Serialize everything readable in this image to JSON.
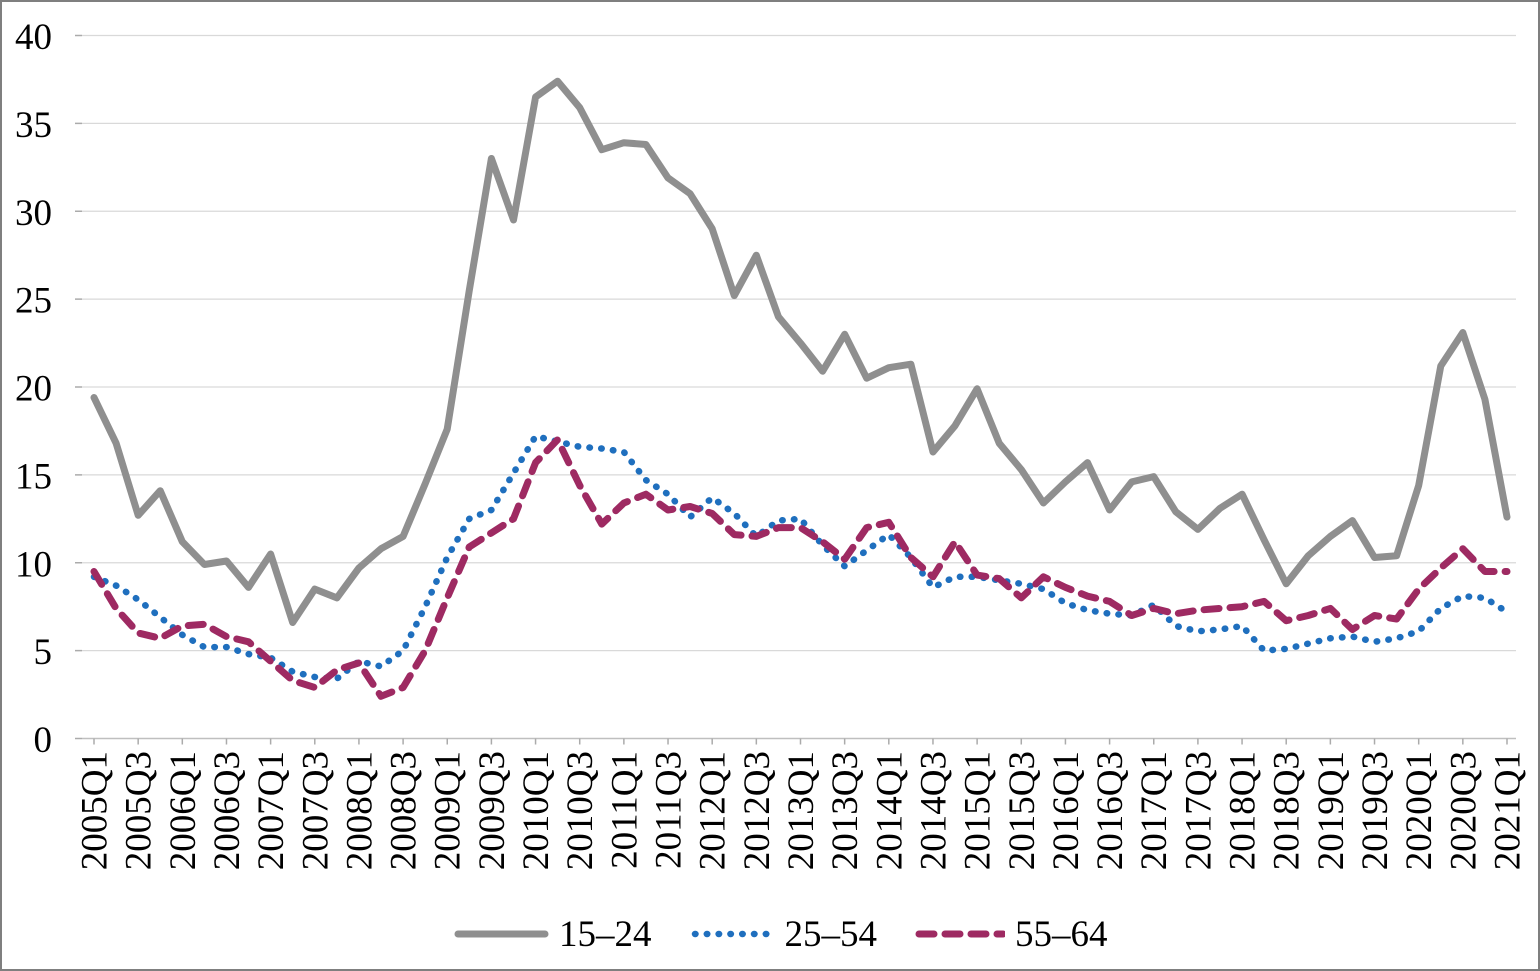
{
  "chart_data": {
    "type": "line",
    "title": "",
    "xlabel": "",
    "ylabel": "",
    "ylim": [
      0,
      40
    ],
    "y_ticks": [
      0,
      5,
      10,
      15,
      20,
      25,
      30,
      35,
      40
    ],
    "grid": "horizontal",
    "legend_position": "bottom-center",
    "x_categories": [
      "2005Q1",
      "2005Q2",
      "2005Q3",
      "2005Q4",
      "2006Q1",
      "2006Q2",
      "2006Q3",
      "2006Q4",
      "2007Q1",
      "2007Q2",
      "2007Q3",
      "2007Q4",
      "2008Q1",
      "2008Q2",
      "2008Q3",
      "2008Q4",
      "2009Q1",
      "2009Q2",
      "2009Q3",
      "2009Q4",
      "2010Q1",
      "2010Q2",
      "2010Q3",
      "2010Q4",
      "2011Q1",
      "2011Q2",
      "2011Q3",
      "2011Q4",
      "2012Q1",
      "2012Q2",
      "2012Q3",
      "2012Q4",
      "2013Q1",
      "2013Q2",
      "2013Q3",
      "2013Q4",
      "2014Q1",
      "2014Q2",
      "2014Q3",
      "2014Q4",
      "2015Q1",
      "2015Q2",
      "2015Q3",
      "2015Q4",
      "2016Q1",
      "2016Q2",
      "2016Q3",
      "2016Q4",
      "2017Q1",
      "2017Q2",
      "2017Q3",
      "2017Q4",
      "2018Q1",
      "2018Q2",
      "2018Q3",
      "2018Q4",
      "2019Q1",
      "2019Q2",
      "2019Q3",
      "2019Q4",
      "2020Q1",
      "2020Q2",
      "2020Q3",
      "2020Q4",
      "2021Q1"
    ],
    "x_tick_labels": [
      "2005Q1",
      "2005Q3",
      "2006Q1",
      "2006Q3",
      "2007Q1",
      "2007Q3",
      "2008Q1",
      "2008Q3",
      "2009Q1",
      "2009Q3",
      "2010Q1",
      "2010Q3",
      "2011Q1",
      "2011Q3",
      "2012Q1",
      "2012Q3",
      "2013Q1",
      "2013Q3",
      "2014Q1",
      "2014Q3",
      "2015Q1",
      "2015Q3",
      "2016Q1",
      "2016Q3",
      "2017Q1",
      "2017Q3",
      "2018Q1",
      "2018Q3",
      "2019Q1",
      "2019Q3",
      "2020Q1",
      "2020Q3",
      "2021Q1"
    ],
    "series": [
      {
        "name": "15–24",
        "style": "solid",
        "color": "#8f8f8f",
        "stroke_width": 7,
        "values": [
          19.4,
          16.8,
          12.7,
          14.1,
          11.2,
          9.9,
          10.1,
          8.6,
          10.5,
          6.6,
          8.5,
          8.0,
          9.7,
          10.8,
          11.5,
          14.5,
          17.6,
          25.5,
          33.0,
          29.5,
          36.5,
          37.4,
          35.9,
          33.5,
          33.9,
          33.8,
          31.9,
          31.0,
          29.0,
          25.2,
          27.5,
          24.0,
          22.5,
          20.9,
          23.0,
          20.5,
          21.1,
          21.3,
          16.3,
          17.8,
          19.9,
          16.8,
          15.3,
          13.4,
          14.6,
          15.7,
          13.0,
          14.6,
          14.9,
          12.9,
          11.9,
          13.1,
          13.9,
          11.3,
          8.8,
          10.4,
          11.5,
          12.4,
          10.3,
          10.4,
          14.4,
          21.2,
          23.1,
          19.3,
          12.6
        ]
      },
      {
        "name": "25–54",
        "style": "dotted",
        "color": "#1f6fbe",
        "stroke_width": 6.5,
        "values": [
          9.2,
          8.7,
          7.9,
          6.9,
          5.9,
          5.2,
          5.2,
          4.8,
          4.6,
          3.8,
          3.5,
          3.4,
          4.4,
          4.1,
          5.0,
          7.5,
          10.3,
          12.5,
          13.0,
          15.1,
          17.2,
          16.9,
          16.6,
          16.5,
          16.3,
          14.7,
          13.9,
          12.6,
          13.7,
          12.8,
          11.5,
          12.4,
          12.5,
          11.0,
          9.8,
          10.7,
          11.6,
          10.3,
          8.6,
          9.2,
          9.2,
          9.0,
          8.8,
          8.5,
          7.7,
          7.3,
          7.1,
          7.0,
          7.6,
          6.4,
          6.1,
          6.2,
          6.4,
          5.0,
          5.1,
          5.4,
          5.7,
          5.8,
          5.5,
          5.7,
          6.1,
          7.4,
          8.1,
          8.0,
          7.2
        ]
      },
      {
        "name": "55–64",
        "style": "dashed",
        "color": "#9e2a62",
        "stroke_width": 7,
        "values": [
          9.5,
          7.4,
          6.0,
          5.7,
          6.4,
          6.5,
          5.8,
          5.5,
          4.4,
          3.3,
          2.9,
          3.9,
          4.3,
          2.4,
          2.9,
          5.0,
          8.0,
          10.9,
          11.7,
          12.5,
          15.7,
          17.0,
          14.4,
          12.2,
          13.4,
          13.9,
          13.0,
          13.2,
          12.8,
          11.6,
          11.5,
          12.0,
          12.0,
          11.2,
          10.2,
          12.0,
          12.3,
          10.3,
          9.2,
          11.2,
          9.3,
          9.1,
          8.0,
          9.2,
          8.6,
          8.1,
          7.8,
          7.0,
          7.4,
          7.1,
          7.3,
          7.4,
          7.5,
          7.8,
          6.7,
          7.0,
          7.4,
          6.2,
          7.0,
          6.8,
          8.5,
          9.7,
          10.8,
          9.5,
          9.5
        ]
      }
    ],
    "colors": {
      "background": "#ffffff",
      "border": "#7f7f7f",
      "gridline": "#d9d9d9",
      "axis_line": "#bfbfbf",
      "tick": "#ababab",
      "text": "#000000"
    }
  }
}
